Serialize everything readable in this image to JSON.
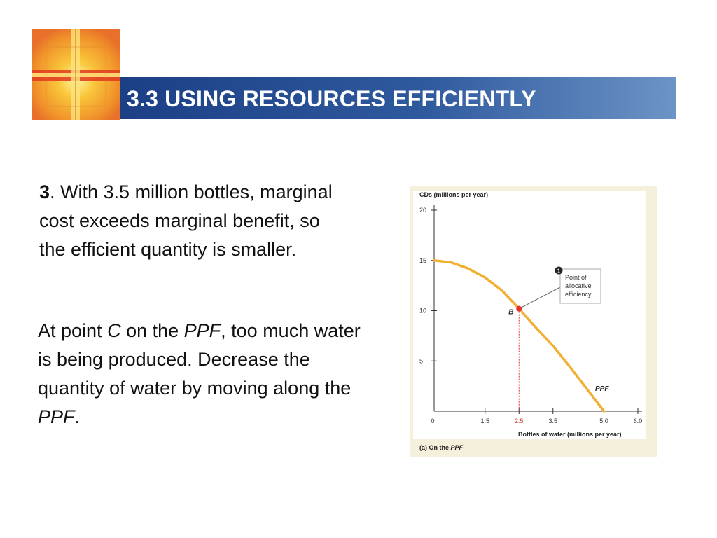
{
  "slide": {
    "title": "3.3 USING RESOURCES EFFICIENTLY",
    "para1": {
      "num": "3",
      "text": ". With 3.5 million bottles, marginal cost exceeds marginal benefit, so the efficient quantity is smaller."
    },
    "para2": {
      "t1": "At point ",
      "c": "C",
      "t2": " on the ",
      "ppf1": "PPF",
      "t3": ", too much water is being produced. Decrease the quantity of water by moving along the ",
      "ppf2": "PPF",
      "t4": "."
    }
  },
  "chart_data": {
    "type": "line",
    "ylabel": "CDs (millions per year)",
    "xlabel": "Bottles of water (millions per year)",
    "caption_prefix": "(a) On the ",
    "caption_em": "PPF",
    "xlim": [
      0,
      6.0
    ],
    "ylim": [
      0,
      20
    ],
    "x_ticks": [
      {
        "value": 0,
        "label": "0"
      },
      {
        "value": 1.5,
        "label": "1.5"
      },
      {
        "value": 2.5,
        "label": "2.5",
        "highlight": true
      },
      {
        "value": 3.5,
        "label": "3.5"
      },
      {
        "value": 5.0,
        "label": "5.0"
      },
      {
        "value": 6.0,
        "label": "6.0"
      }
    ],
    "y_ticks": [
      {
        "value": 5,
        "label": "5"
      },
      {
        "value": 10,
        "label": "10"
      },
      {
        "value": 15,
        "label": "15"
      },
      {
        "value": 20,
        "label": "20"
      }
    ],
    "series": [
      {
        "name": "PPF",
        "x": [
          0,
          0.5,
          1.0,
          1.5,
          2.0,
          2.5,
          3.0,
          3.5,
          4.0,
          4.5,
          5.0
        ],
        "y": [
          15,
          14.8,
          14.2,
          13.3,
          12.0,
          10.2,
          8.3,
          6.5,
          4.4,
          2.2,
          0
        ]
      }
    ],
    "point": {
      "label": "B",
      "x": 2.5,
      "y": 10.2
    },
    "annotation": {
      "num": "1",
      "lines": [
        "Point of",
        "allocative",
        "efficiency"
      ]
    },
    "series_label": "PPF",
    "colors": {
      "curve": "#f2b033",
      "point": "#e03030",
      "highlight_tick": "#d23a2a"
    }
  }
}
